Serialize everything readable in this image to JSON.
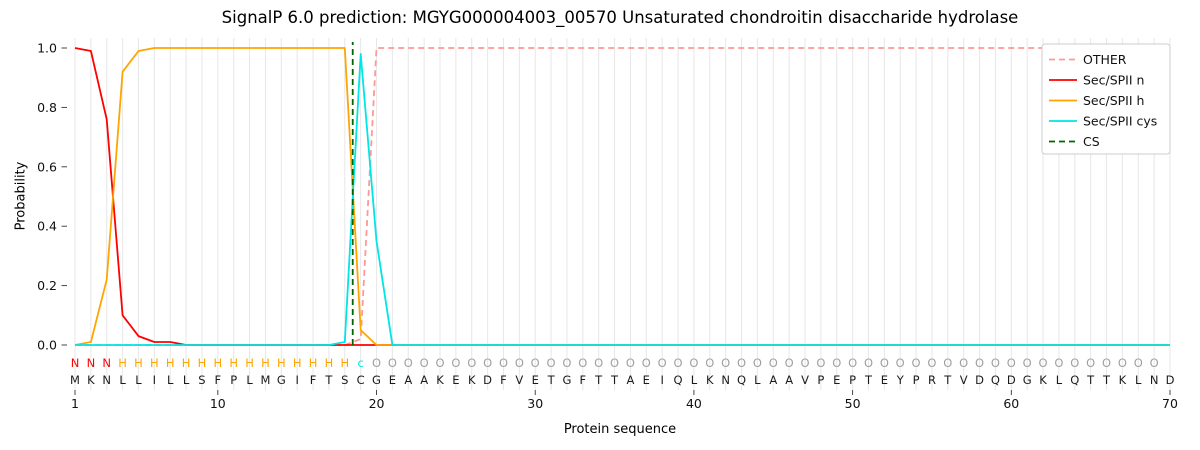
{
  "chart_data": {
    "type": "line",
    "title": "SignalP 6.0 prediction: MGYG000004003_00570 Unsaturated chondroitin disaccharide hydrolase",
    "xlabel": "Protein sequence",
    "ylabel": "Probability",
    "x_ticks": [
      1,
      10,
      20,
      30,
      40,
      50,
      60,
      70
    ],
    "y_ticks": [
      0.0,
      0.2,
      0.4,
      0.6,
      0.8,
      1.0
    ],
    "xlim": [
      1,
      70
    ],
    "ylim": [
      0,
      1
    ],
    "grid": "vertical-line-per-residue",
    "legend_position": "upper-right",
    "grid_color": "#e7e7e7",
    "sequence": "MKNLLILLSFPLMGIFTSCGEAAKEKDFVETGFTTAEIQLKNQLAAVPEPTEYPRTVDQDGKLQTTKLND",
    "region_labels": "NNNHHHHHHHHHHHHHHHcOOOOOOOOOOOOOOOOOOOOOOOOOOOOOOOOOOOOOOOOOOOOOOOOOO",
    "region_colors": {
      "N": "#ff0000",
      "H": "#ffa500",
      "c": "#00e5e5",
      "O": "#a0a0a0"
    },
    "series": [
      {
        "name": "OTHER",
        "color": "#ff9896",
        "style": "dashed",
        "values": [
          0,
          0,
          0,
          0,
          0,
          0,
          0,
          0,
          0,
          0,
          0,
          0,
          0,
          0,
          0,
          0,
          0,
          0,
          0.02,
          1,
          1,
          1,
          1,
          1,
          1,
          1,
          1,
          1,
          1,
          1,
          1,
          1,
          1,
          1,
          1,
          1,
          1,
          1,
          1,
          1,
          1,
          1,
          1,
          1,
          1,
          1,
          1,
          1,
          1,
          1,
          1,
          1,
          1,
          1,
          1,
          1,
          1,
          1,
          1,
          1,
          1,
          1,
          1,
          1,
          1,
          1,
          1,
          1,
          1,
          1
        ]
      },
      {
        "name": "Sec/SPII n",
        "color": "#ff0000",
        "style": "solid",
        "values": [
          1,
          0.99,
          0.76,
          0.1,
          0.03,
          0.01,
          0.01,
          0,
          0,
          0,
          0,
          0,
          0,
          0,
          0,
          0,
          0,
          0,
          0,
          0,
          0,
          0,
          0,
          0,
          0,
          0,
          0,
          0,
          0,
          0,
          0,
          0,
          0,
          0,
          0,
          0,
          0,
          0,
          0,
          0,
          0,
          0,
          0,
          0,
          0,
          0,
          0,
          0,
          0,
          0,
          0,
          0,
          0,
          0,
          0,
          0,
          0,
          0,
          0,
          0,
          0,
          0,
          0,
          0,
          0,
          0,
          0,
          0,
          0,
          0
        ]
      },
      {
        "name": "Sec/SPII h",
        "color": "#ffa500",
        "style": "solid",
        "values": [
          0,
          0.01,
          0.22,
          0.92,
          0.99,
          1,
          1,
          1,
          1,
          1,
          1,
          1,
          1,
          1,
          1,
          1,
          1,
          1,
          0.05,
          0,
          0,
          0,
          0,
          0,
          0,
          0,
          0,
          0,
          0,
          0,
          0,
          0,
          0,
          0,
          0,
          0,
          0,
          0,
          0,
          0,
          0,
          0,
          0,
          0,
          0,
          0,
          0,
          0,
          0,
          0,
          0,
          0,
          0,
          0,
          0,
          0,
          0,
          0,
          0,
          0,
          0,
          0,
          0,
          0,
          0,
          0,
          0,
          0,
          0,
          0
        ]
      },
      {
        "name": "Sec/SPII cys",
        "color": "#00e5e5",
        "style": "solid",
        "values": [
          0,
          0,
          0,
          0,
          0,
          0,
          0,
          0,
          0,
          0,
          0,
          0,
          0,
          0,
          0,
          0,
          0,
          0.01,
          0.98,
          0.35,
          0,
          0,
          0,
          0,
          0,
          0,
          0,
          0,
          0,
          0,
          0,
          0,
          0,
          0,
          0,
          0,
          0,
          0,
          0,
          0,
          0,
          0,
          0,
          0,
          0,
          0,
          0,
          0,
          0,
          0,
          0,
          0,
          0,
          0,
          0,
          0,
          0,
          0,
          0,
          0,
          0,
          0,
          0,
          0,
          0,
          0,
          0,
          0,
          0,
          0
        ]
      }
    ],
    "markers": [
      {
        "name": "CS",
        "color": "#006400",
        "style": "dashed",
        "type": "vline",
        "x": 18.5
      }
    ],
    "legend_entries": [
      "OTHER",
      "Sec/SPII n",
      "Sec/SPII h",
      "Sec/SPII cys",
      "CS"
    ]
  }
}
